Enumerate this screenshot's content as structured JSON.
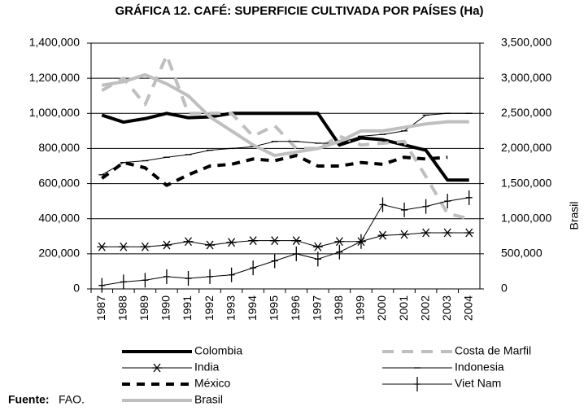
{
  "chart_data": {
    "type": "line",
    "title": "GRÁFICA 12. CAFÉ: SUPERFICIE CULTIVADA POR PAÍSES (Ha)",
    "y2_label": "Brasil",
    "source_label": "Fuente:",
    "source": "FAO.",
    "categories": [
      "1987",
      "1988",
      "1989",
      "1990",
      "1991",
      "1992",
      "1993",
      "1994",
      "1995",
      "1996",
      "1997",
      "1998",
      "1999",
      "2000",
      "2001",
      "2002",
      "2003",
      "2004"
    ],
    "ylim": [
      0,
      1400000
    ],
    "yticks": [
      0,
      {
        "value": 200000,
        "label": "200,000"
      },
      {
        "value": 400000,
        "label": "400,000"
      },
      {
        "value": 600000,
        "label": "600,000"
      },
      {
        "value": 800000,
        "label": "800,000"
      },
      {
        "value": 1000000,
        "label": "1,000,000"
      },
      {
        "value": 1200000,
        "label": "1,200,000"
      },
      {
        "value": 1400000,
        "label": "1,400,000"
      }
    ],
    "y2lim": [
      0,
      3500000
    ],
    "y2ticks": [
      0,
      {
        "value": 500000,
        "label": "500,000"
      },
      {
        "value": 1000000,
        "label": "1,000,000"
      },
      {
        "value": 1500000,
        "label": "1,500,000"
      },
      {
        "value": 2000000,
        "label": "2,000,000"
      },
      {
        "value": 2500000,
        "label": "2,500,000"
      },
      {
        "value": 3000000,
        "label": "3,000,000"
      },
      {
        "value": 3500000,
        "label": "3,500,000"
      }
    ],
    "grid": true,
    "series": [
      {
        "name": "Colombia",
        "color": "#000000",
        "width": 4,
        "values": [
          990000,
          950000,
          970000,
          1000000,
          975000,
          980000,
          1000000,
          1000000,
          1000000,
          1000000,
          1000000,
          820000,
          860000,
          850000,
          820000,
          790000,
          620000,
          620000
        ]
      },
      {
        "name": "Costa de Marfil",
        "color": "#bfbfbf",
        "width": 4,
        "dash": "14,10",
        "values": [
          1130000,
          1200000,
          1050000,
          1330000,
          1000000,
          1000000,
          1000000,
          870000,
          930000,
          800000,
          800000,
          870000,
          820000,
          830000,
          840000,
          640000,
          430000,
          400000
        ]
      },
      {
        "name": "India",
        "color": "#000000",
        "width": 1,
        "marker": "star",
        "values": [
          240000,
          240000,
          240000,
          250000,
          270000,
          250000,
          265000,
          275000,
          275000,
          275000,
          240000,
          270000,
          270000,
          305000,
          310000,
          320000,
          320000,
          320000
        ]
      },
      {
        "name": "Indonesia",
        "color": "#000000",
        "width": 1,
        "marker": "dash",
        "values": [
          650000,
          720000,
          730000,
          750000,
          765000,
          790000,
          800000,
          810000,
          840000,
          840000,
          830000,
          830000,
          870000,
          880000,
          900000,
          990000,
          1000000,
          1000000
        ]
      },
      {
        "name": "México",
        "color": "#000000",
        "width": 4,
        "dash": "10,8",
        "values": [
          630000,
          720000,
          690000,
          590000,
          650000,
          700000,
          710000,
          740000,
          730000,
          760000,
          700000,
          700000,
          720000,
          710000,
          750000,
          740000,
          750000,
          null
        ]
      },
      {
        "name": "Viet Nam",
        "color": "#000000",
        "width": 1,
        "marker": "plus",
        "values": [
          20000,
          40000,
          50000,
          70000,
          60000,
          70000,
          80000,
          120000,
          160000,
          200000,
          170000,
          210000,
          270000,
          480000,
          450000,
          470000,
          500000,
          520000
        ]
      },
      {
        "name": "Brasil",
        "color": "#bfbfbf",
        "width": 4,
        "axis": "y2",
        "values": [
          2900000,
          2950000,
          3050000,
          2920000,
          2750000,
          2450000,
          2250000,
          2050000,
          1900000,
          1950000,
          2000000,
          2100000,
          2250000,
          2250000,
          2300000,
          2350000,
          2380000,
          2380000
        ]
      }
    ]
  }
}
